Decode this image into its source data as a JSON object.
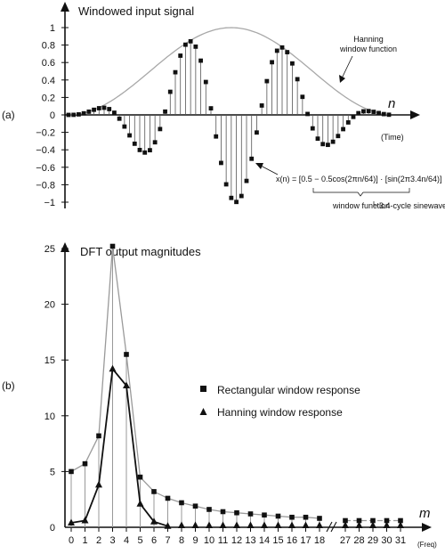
{
  "chart_data": [
    {
      "type": "scatter",
      "panel_label": "(a)",
      "title": "Windowed input signal",
      "xlabel": "n",
      "xlabel_sub": "(Time)",
      "ylim": [
        -1,
        1
      ],
      "y_ticks": [
        "1",
        "0.8",
        "0.6",
        "0.4",
        "0.2",
        "0",
        "−0.2",
        "−0.4",
        "−0.6",
        "−0.8",
        "−1"
      ],
      "n_points": 64,
      "cycles": 3.4,
      "series": [
        {
          "name": "",
          "style": "square-stem"
        },
        {
          "name": "Hanning window function",
          "style": "gray-line"
        }
      ],
      "equation": {
        "lhs": "x(n) = [0.5 − 0.5cos(2πn/64)] · [sin(2π3.4n/64)]",
        "brace_1": "window function",
        "brace_2": "3.4-cycle sinewave"
      }
    },
    {
      "type": "line",
      "panel_label": "(b)",
      "title": "DFT output magnitudes",
      "xlabel": "m",
      "xlabel_sub": "(Freq)",
      "ylim": [
        0,
        25
      ],
      "y_ticks": [
        "25",
        "20",
        "15",
        "10",
        "5",
        "0"
      ],
      "x_ticks_1": [
        "0",
        "1",
        "2",
        "3",
        "4",
        "5",
        "6",
        "7",
        "8",
        "9",
        "10",
        "11",
        "12",
        "13",
        "14",
        "15",
        "16",
        "17",
        "18"
      ],
      "x_ticks_2": [
        "27",
        "28",
        "29",
        "30",
        "31"
      ],
      "x_1": [
        0,
        1,
        2,
        3,
        4,
        5,
        6,
        7,
        8,
        9,
        10,
        11,
        12,
        13,
        14,
        15,
        16,
        17,
        18
      ],
      "x_2": [
        27,
        28,
        29,
        30,
        31
      ],
      "series": [
        {
          "name": "Rectangular window response",
          "marker": "square",
          "values_1": [
            5.0,
            5.7,
            8.2,
            25.2,
            15.5,
            4.5,
            3.2,
            2.6,
            2.2,
            1.9,
            1.6,
            1.4,
            1.3,
            1.2,
            1.1,
            1.0,
            0.9,
            0.9,
            0.8
          ],
          "values_2": [
            0.6,
            0.6,
            0.6,
            0.6,
            0.6
          ]
        },
        {
          "name": "Hanning window response",
          "marker": "triangle",
          "values_1": [
            0.4,
            0.6,
            3.8,
            14.2,
            12.7,
            2.1,
            0.5,
            0.1,
            0,
            0,
            0,
            0,
            0,
            0,
            0,
            0,
            0,
            0,
            0
          ],
          "values_2": [
            0,
            0,
            0,
            0,
            0
          ]
        }
      ]
    }
  ]
}
